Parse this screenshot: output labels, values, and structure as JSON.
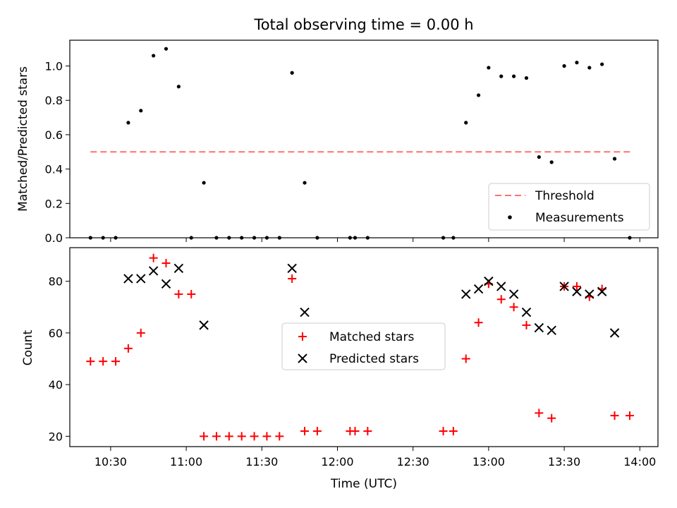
{
  "chart_data": [
    {
      "type": "scatter",
      "title": "Total observing time = 0.00 h",
      "ylabel": "Matched/Predicted stars",
      "xlabel": "",
      "xlim_hours": [
        10.23,
        14.12
      ],
      "ylim": [
        0,
        1.15
      ],
      "yticks": [
        0.0,
        0.2,
        0.4,
        0.6,
        0.8,
        1.0
      ],
      "ytick_labels": [
        "0.0",
        "0.2",
        "0.4",
        "0.6",
        "0.8",
        "1.0"
      ],
      "xtick_labels": [],
      "legend_position": "lower right",
      "series": [
        {
          "name": "Threshold",
          "kind": "dashed-line",
          "color": "#ff7070",
          "x": [
            "10:22",
            "13:57"
          ],
          "y": [
            0.5,
            0.5
          ]
        },
        {
          "name": "Measurements",
          "kind": "dot",
          "color": "#000000",
          "x": [
            "10:22",
            "10:27",
            "10:32",
            "10:37",
            "10:42",
            "10:47",
            "10:52",
            "10:57",
            "11:02",
            "11:07",
            "11:12",
            "11:17",
            "11:22",
            "11:27",
            "11:32",
            "11:37",
            "11:42",
            "11:47",
            "11:52",
            "12:05",
            "12:07",
            "12:12",
            "12:42",
            "12:46",
            "12:51",
            "12:56",
            "13:00",
            "13:05",
            "13:10",
            "13:15",
            "13:20",
            "13:25",
            "13:30",
            "13:35",
            "13:40",
            "13:45",
            "13:50",
            "13:56"
          ],
          "y": [
            0.0,
            0.0,
            0.0,
            0.67,
            0.74,
            1.06,
            1.1,
            0.88,
            0.0,
            0.32,
            0.0,
            0.0,
            0.0,
            0.0,
            0.0,
            0.0,
            0.96,
            0.32,
            0.0,
            0.0,
            0.0,
            0.0,
            0.0,
            0.0,
            0.67,
            0.83,
            0.99,
            0.94,
            0.94,
            0.93,
            0.47,
            0.44,
            1.0,
            1.02,
            0.99,
            1.01,
            0.46,
            0.0
          ]
        }
      ]
    },
    {
      "type": "scatter",
      "title": "",
      "xlabel": "Time (UTC)",
      "ylabel": "Count",
      "xlim_hours": [
        10.23,
        14.12
      ],
      "ylim": [
        16,
        93
      ],
      "yticks": [
        20,
        40,
        60,
        80
      ],
      "ytick_labels": [
        "20",
        "40",
        "60",
        "80"
      ],
      "xticks_hours": [
        10.5,
        11.0,
        11.5,
        12.0,
        12.5,
        13.0,
        13.5,
        14.0
      ],
      "xtick_labels": [
        "10:30",
        "11:00",
        "11:30",
        "12:00",
        "12:30",
        "13:00",
        "13:30",
        "14:00"
      ],
      "legend_position": "center",
      "series": [
        {
          "name": "Matched stars",
          "marker": "plus",
          "color": "#ff0000",
          "x": [
            "10:22",
            "10:27",
            "10:32",
            "10:37",
            "10:42",
            "10:47",
            "10:52",
            "10:57",
            "11:02",
            "11:07",
            "11:12",
            "11:17",
            "11:22",
            "11:27",
            "11:32",
            "11:37",
            "11:42",
            "11:47",
            "11:52",
            "12:05",
            "12:07",
            "12:12",
            "12:42",
            "12:46",
            "12:51",
            "12:56",
            "13:00",
            "13:05",
            "13:10",
            "13:15",
            "13:20",
            "13:25",
            "13:30",
            "13:35",
            "13:40",
            "13:45",
            "13:50",
            "13:56"
          ],
          "y": [
            49,
            49,
            49,
            54,
            60,
            89,
            87,
            75,
            75,
            20,
            20,
            20,
            20,
            20,
            20,
            20,
            81,
            22,
            22,
            22,
            22,
            22,
            22,
            22,
            50,
            64,
            79,
            73,
            70,
            63,
            29,
            27,
            78,
            78,
            74,
            77,
            28,
            28
          ]
        },
        {
          "name": "Predicted stars",
          "marker": "x",
          "color": "#000000",
          "x": [
            "10:37",
            "10:42",
            "10:47",
            "10:52",
            "10:57",
            "11:07",
            "11:42",
            "11:47",
            "12:51",
            "12:56",
            "13:00",
            "13:05",
            "13:10",
            "13:15",
            "13:20",
            "13:25",
            "13:30",
            "13:35",
            "13:40",
            "13:45",
            "13:50"
          ],
          "y": [
            81,
            81,
            84,
            79,
            85,
            63,
            85,
            68,
            75,
            77,
            80,
            78,
            75,
            68,
            62,
            61,
            78,
            76,
            75,
            76,
            60
          ]
        }
      ]
    }
  ]
}
